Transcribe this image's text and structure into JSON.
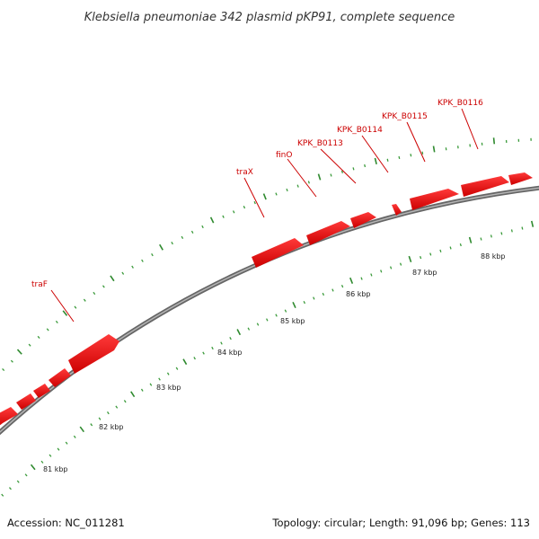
{
  "title": "Klebsiella pneumoniae 342 plasmid pKP91, complete sequence",
  "footer": {
    "accession": "Accession: NC_011281",
    "stats": "Topology: circular; Length: 91,096 bp; Genes: 113"
  },
  "colors": {
    "gene": "#ee1111",
    "gene_label": "#cc0000",
    "backbone": "#888888",
    "tick": "#339933",
    "text": "#222222"
  },
  "map": {
    "kbp_labels": [
      "81 kbp",
      "82 kbp",
      "83 kbp",
      "84 kbp",
      "85 kbp",
      "86 kbp",
      "87 kbp",
      "88 kbp"
    ],
    "gene_labels": [
      "traF",
      "traX",
      "finO",
      "KPK_B0113",
      "KPK_B0114",
      "KPK_B0115",
      "KPK_B0116"
    ]
  }
}
